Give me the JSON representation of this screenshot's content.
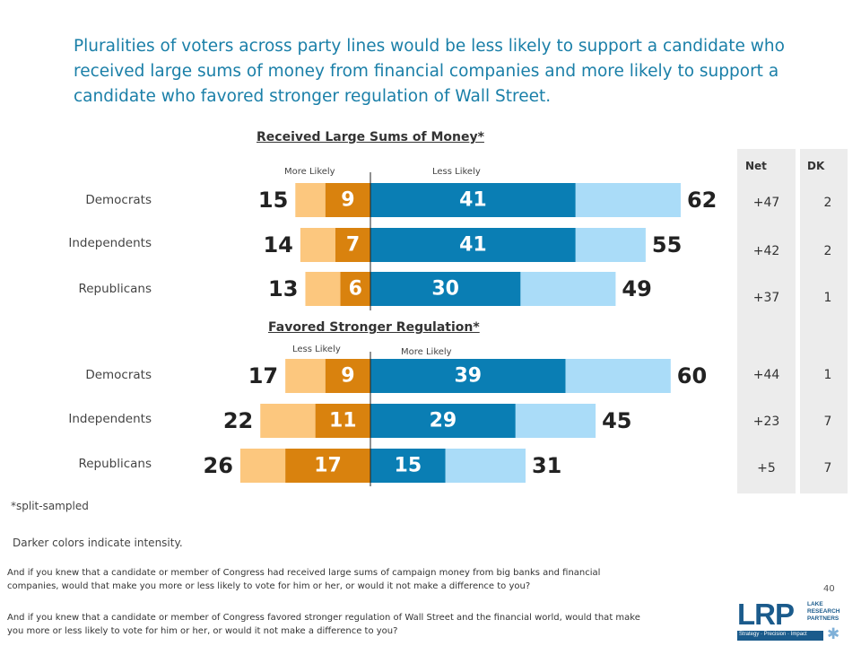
{
  "headline": "Pluralities of voters across party lines would be less likely to support a candidate who received large sums of money from financial companies and more likely to support a candidate who favored stronger regulation of Wall Street.",
  "chart_data": [
    {
      "type": "bar",
      "title": "Received Large Sums of Money*",
      "left_label": "More Likely",
      "right_label": "Less Likely",
      "categories": [
        "Democrats",
        "Independents",
        "Republicans"
      ],
      "left_total": [
        15,
        14,
        13
      ],
      "left_intense": [
        9,
        7,
        6
      ],
      "right_intense": [
        41,
        41,
        30
      ],
      "right_total": [
        62,
        55,
        49
      ],
      "net": [
        "+47",
        "+42",
        "+37"
      ],
      "dk": [
        "2",
        "2",
        "1"
      ]
    },
    {
      "type": "bar",
      "title": "Favored Stronger Regulation*",
      "left_label": "Less Likely",
      "right_label": "More Likely",
      "categories": [
        "Democrats",
        "Independents",
        "Republicans"
      ],
      "left_total": [
        17,
        22,
        26
      ],
      "left_intense": [
        9,
        11,
        17
      ],
      "right_intense": [
        39,
        29,
        15
      ],
      "right_total": [
        60,
        45,
        31
      ],
      "net": [
        "+44",
        "+23",
        "+5"
      ],
      "dk": [
        "1",
        "7",
        "7"
      ]
    }
  ],
  "colors": {
    "left_light": "#fcc77e",
    "left_dark": "#d9820e",
    "right_dark": "#0a7eb4",
    "right_light": "#aadcf8",
    "headline": "#1a7fa8"
  },
  "panels": {
    "net_header": "Net",
    "dk_header": "DK"
  },
  "notes": {
    "split": "*split-sampled",
    "intensity": "Darker colors indicate intensity."
  },
  "questions": [
    "And if you knew that a candidate or member of Congress had received large sums of campaign money from big banks and financial companies, would that make you more or less likely to vote for him or her, or would it not make a difference to you?",
    "And if you knew that a candidate or member of Congress favored stronger regulation of Wall Street and the financial world, would that make you more or less likely to vote for him or her, or would it not make a difference to you?"
  ],
  "page_number": "40",
  "logo": {
    "letters": "LRP",
    "name_lines": [
      "LAKE",
      "RESEARCH",
      "PARTNERS"
    ],
    "tagline": "Strategy · Precision · Impact"
  }
}
